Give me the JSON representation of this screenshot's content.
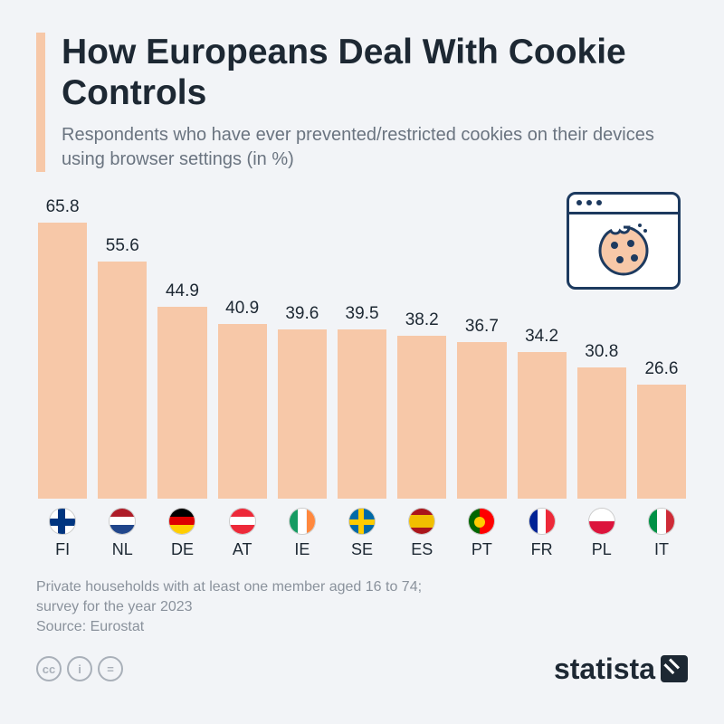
{
  "title": "How Europeans Deal With Cookie Controls",
  "subtitle": "Respondents who have ever prevented/restricted cookies on their devices using browser settings (in %)",
  "chart": {
    "type": "bar",
    "bar_color": "#f7c8a8",
    "value_fontsize": 19,
    "label_fontsize": 18,
    "max_value": 70,
    "background_color": "#f2f4f7",
    "data": [
      {
        "code": "FI",
        "value": 65.8,
        "flag": "fi"
      },
      {
        "code": "NL",
        "value": 55.6,
        "flag": "nl"
      },
      {
        "code": "DE",
        "value": 44.9,
        "flag": "de"
      },
      {
        "code": "AT",
        "value": 40.9,
        "flag": "at"
      },
      {
        "code": "IE",
        "value": 39.6,
        "flag": "ie"
      },
      {
        "code": "SE",
        "value": 39.5,
        "flag": "se"
      },
      {
        "code": "ES",
        "value": 38.2,
        "flag": "es"
      },
      {
        "code": "PT",
        "value": 36.7,
        "flag": "pt"
      },
      {
        "code": "FR",
        "value": 34.2,
        "flag": "fr"
      },
      {
        "code": "PL",
        "value": 30.8,
        "flag": "pl"
      },
      {
        "code": "IT",
        "value": 26.6,
        "flag": "it"
      }
    ]
  },
  "footnote_line1": "Private households with at least one member aged 16 to 74;",
  "footnote_line2": "survey for the year 2023",
  "source": "Source: Eurostat",
  "brand": "statista",
  "cc": {
    "a": "cc",
    "b": "i",
    "c": "="
  },
  "colors": {
    "accent": "#f7c8a8",
    "title": "#1d2833",
    "subtitle": "#6a7480",
    "foot": "#8a929c",
    "cookie_border": "#1d3a5f"
  }
}
